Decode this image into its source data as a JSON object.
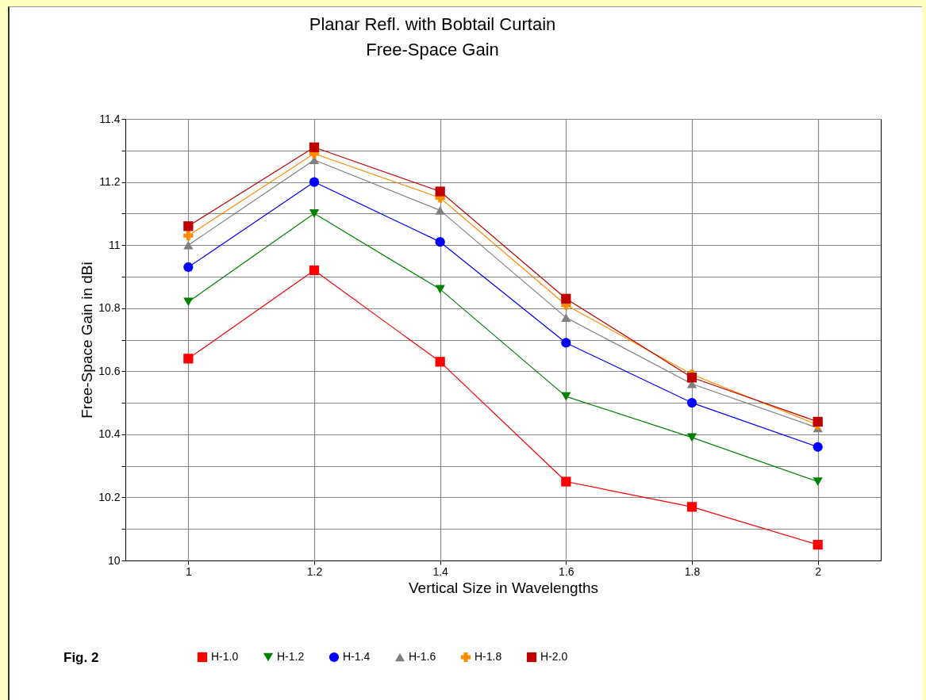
{
  "chart_data": {
    "type": "line",
    "title": "Planar Refl. with Bobtail Curtain",
    "subtitle": "Free-Space Gain",
    "xlabel": "Vertical Size in Wavelengths",
    "ylabel": "Free-Space Gain in dBi",
    "annotations": [
      "Fig. 2"
    ],
    "x": [
      1,
      1.2,
      1.4,
      1.6,
      1.8,
      2
    ],
    "series": [
      {
        "name": "H-1.0",
        "color": "#ff0000",
        "marker": "square",
        "values": [
          10.64,
          10.92,
          10.63,
          10.25,
          10.17,
          10.05
        ]
      },
      {
        "name": "H-1.2",
        "color": "#008000",
        "marker": "triangle-down",
        "values": [
          10.82,
          11.1,
          10.86,
          10.52,
          10.39,
          10.25
        ]
      },
      {
        "name": "H-1.4",
        "color": "#0000ff",
        "marker": "circle",
        "values": [
          10.93,
          11.2,
          11.01,
          10.69,
          10.5,
          10.36
        ]
      },
      {
        "name": "H-1.6",
        "color": "#808080",
        "marker": "triangle",
        "values": [
          11.0,
          11.27,
          11.11,
          10.77,
          10.56,
          10.42
        ]
      },
      {
        "name": "H-1.8",
        "color": "#ff8c00",
        "marker": "cross",
        "values": [
          11.03,
          11.29,
          11.15,
          10.81,
          10.59,
          10.43
        ]
      },
      {
        "name": "H-2.0",
        "color": "#c00000",
        "marker": "square",
        "values": [
          11.06,
          11.31,
          11.17,
          10.83,
          10.58,
          10.44
        ]
      }
    ],
    "xlim": [
      0.9,
      2.1
    ],
    "xticks": [
      1,
      1.2,
      1.4,
      1.6,
      1.8,
      2
    ],
    "ylim": [
      10,
      11.4
    ],
    "yticks": [
      10,
      {
        "value": 10.1,
        "label": null
      },
      10.2,
      {
        "value": 10.3,
        "label": null
      },
      10.4,
      {
        "value": 10.5,
        "label": null
      },
      10.6,
      {
        "value": 10.7,
        "label": null
      },
      10.8,
      {
        "value": 10.9,
        "label": null
      },
      11,
      {
        "value": 11.1,
        "label": null
      },
      11.2,
      {
        "value": 11.3,
        "label": null
      },
      11.4
    ],
    "grid": true,
    "legend": "bottom"
  }
}
